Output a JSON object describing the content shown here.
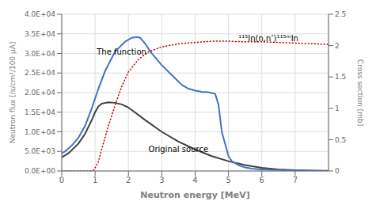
{
  "chart_data": {
    "type": "line",
    "xlabel": "Neutron energy [MeV]",
    "ylabel": "Neutron flux [/s/cm²/100 µA]",
    "y2label": "Cross section [mb]",
    "xlim": [
      0,
      8
    ],
    "xticks": [
      0,
      1,
      2,
      3,
      4,
      5,
      6,
      7
    ],
    "ylim": [
      0,
      40000
    ],
    "yticks": [
      {
        "value": 0,
        "label": "0.0E+00"
      },
      {
        "value": 5000,
        "label": "5.0E+03"
      },
      {
        "value": 10000,
        "label": "1.0E+04"
      },
      {
        "value": 15000,
        "label": "1.5E+04"
      },
      {
        "value": 20000,
        "label": "2.0E+04"
      },
      {
        "value": 25000,
        "label": "2.5E+04"
      },
      {
        "value": 30000,
        "label": "3.0E+04"
      },
      {
        "value": 35000,
        "label": "3.5E+04"
      },
      {
        "value": 40000,
        "label": "4.0E+04"
      }
    ],
    "y2lim": [
      0,
      2.5
    ],
    "y2ticks": [
      0,
      0.5,
      1,
      1.5,
      2,
      2.5
    ],
    "grid": true,
    "series": [
      {
        "color": "#404040",
        "line_style": "solid",
        "x": [
          0,
          0.2,
          0.5,
          0.7,
          0.9,
          1.0,
          1.1,
          1.2,
          1.4,
          1.6,
          1.8,
          2.0,
          2.5,
          3.0,
          3.5,
          4.0,
          4.5,
          5.0,
          5.5,
          6.0,
          6.5,
          7.0,
          7.5,
          8.0
        ],
        "values": [
          3500,
          4500,
          7000,
          9500,
          13000,
          15000,
          16500,
          17200,
          17500,
          17400,
          17000,
          16200,
          13000,
          10000,
          7500,
          5500,
          3800,
          2500,
          1500,
          800,
          400,
          200,
          80,
          30
        ]
      },
      {
        "color": "#4472c4",
        "line_style": "solid",
        "x": [
          0,
          0.1,
          0.3,
          0.5,
          0.7,
          0.9,
          1.1,
          1.3,
          1.6,
          1.9,
          2.1,
          2.25,
          2.35,
          2.5,
          2.7,
          3.0,
          3.3,
          3.6,
          3.8,
          4.0,
          4.2,
          4.4,
          4.5,
          4.6,
          4.7,
          4.8,
          5.0,
          5.1,
          5.3,
          5.5,
          5.7,
          5.9,
          6.1,
          6.5,
          7.0,
          7.5,
          8.0
        ],
        "values": [
          4500,
          5000,
          6500,
          8500,
          11500,
          16000,
          21000,
          25500,
          30500,
          33000,
          34000,
          34200,
          34000,
          32500,
          30000,
          27000,
          24500,
          22000,
          21000,
          20500,
          20200,
          20100,
          19900,
          19700,
          17000,
          10000,
          3800,
          2500,
          1500,
          900,
          600,
          450,
          350,
          250,
          150,
          50,
          0
        ]
      },
      {
        "color": "#c00000",
        "line_style": "dotted",
        "axis": "y2",
        "x": [
          0,
          0.7,
          0.85,
          0.95,
          1.0,
          1.1,
          1.2,
          1.4,
          1.6,
          1.8,
          2.0,
          2.3,
          2.6,
          3.0,
          3.5,
          4.0,
          4.5,
          5.0,
          5.5,
          6.0,
          6.5,
          7.0,
          7.5,
          8.0
        ],
        "values": [
          0,
          0.0,
          0.0,
          0.01,
          0.05,
          0.15,
          0.35,
          0.72,
          1.05,
          1.35,
          1.58,
          1.78,
          1.9,
          1.98,
          2.03,
          2.05,
          2.07,
          2.07,
          2.06,
          2.06,
          2.05,
          2.04,
          2.03,
          2.02
        ]
      }
    ],
    "annotations": [
      {
        "text": "The function",
        "x": 1.05,
        "y": 30500
      },
      {
        "text": "Original source",
        "x": 2.6,
        "y": 5500
      },
      {
        "text": "¹¹⁵In(n,n’)¹¹⁵ᵐIn",
        "x": 5.3,
        "y": 2.12,
        "axis": "y2"
      }
    ]
  }
}
